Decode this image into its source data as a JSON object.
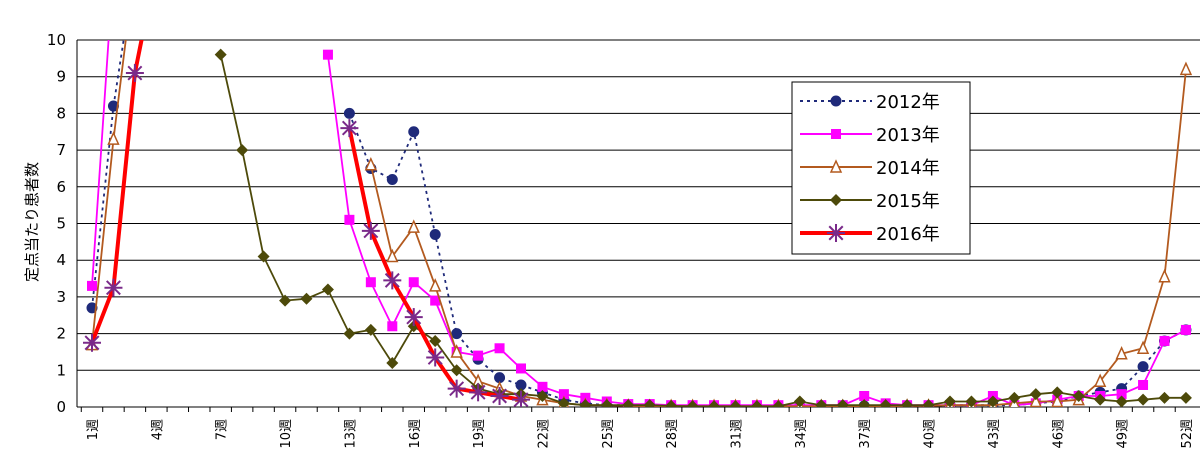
{
  "chart_data": {
    "type": "line",
    "ylabel": "定点当たり患者数",
    "ylim": [
      0,
      10
    ],
    "yticks": [
      "0",
      "1",
      "2",
      "3",
      "4",
      "5",
      "6",
      "7",
      "8",
      "9",
      "10"
    ],
    "xlim": [
      1,
      52
    ],
    "xtick_labels": [
      {
        "week": 1,
        "label": "1週"
      },
      {
        "week": 4,
        "label": "4週"
      },
      {
        "week": 7,
        "label": "7週"
      },
      {
        "week": 10,
        "label": "10週"
      },
      {
        "week": 13,
        "label": "13週"
      },
      {
        "week": 16,
        "label": "16週"
      },
      {
        "week": 19,
        "label": "19週"
      },
      {
        "week": 22,
        "label": "22週"
      },
      {
        "week": 25,
        "label": "25週"
      },
      {
        "week": 28,
        "label": "28週"
      },
      {
        "week": 31,
        "label": "31週"
      },
      {
        "week": 34,
        "label": "34週"
      },
      {
        "week": 37,
        "label": "37週"
      },
      {
        "week": 40,
        "label": "40週"
      },
      {
        "week": 43,
        "label": "43週"
      },
      {
        "week": 46,
        "label": "46週"
      },
      {
        "week": 49,
        "label": "49週"
      },
      {
        "week": 52,
        "label": "52週"
      }
    ],
    "grid": true,
    "legend_position": "top-right",
    "series": [
      {
        "name": "2012年",
        "color": "#1f2a7a",
        "marker": "circle",
        "dash": true,
        "x": [
          1,
          2,
          3,
          4,
          13,
          14,
          15,
          16,
          17,
          18,
          19,
          20,
          21,
          22,
          23,
          24,
          25,
          26,
          27,
          28,
          29,
          30,
          31,
          32,
          33,
          34,
          35,
          36,
          37,
          38,
          39,
          40,
          41,
          42,
          43,
          44,
          45,
          46,
          47,
          48,
          49,
          50,
          51,
          52
        ],
        "y": [
          2.7,
          8.2,
          12,
          12,
          8.0,
          6.5,
          6.2,
          7.5,
          4.7,
          2.0,
          1.3,
          0.8,
          0.6,
          0.4,
          0.2,
          0.1,
          0.05,
          0.05,
          0.05,
          0.03,
          0.02,
          0.02,
          0.02,
          0.02,
          0.02,
          0.02,
          0.02,
          0.02,
          0.03,
          0.03,
          0.03,
          0.03,
          0.05,
          0.05,
          0.05,
          0.05,
          0.1,
          0.15,
          0.3,
          0.4,
          0.5,
          1.1,
          1.8,
          2.1
        ]
      },
      {
        "name": "2013年",
        "color": "#ff00ff",
        "marker": "square",
        "dash": false,
        "x": [
          1,
          2,
          3,
          12,
          13,
          14,
          15,
          16,
          17,
          18,
          19,
          20,
          21,
          22,
          23,
          24,
          25,
          26,
          27,
          28,
          29,
          30,
          31,
          32,
          33,
          34,
          35,
          36,
          37,
          38,
          39,
          40,
          41,
          42,
          43,
          44,
          45,
          46,
          47,
          48,
          49,
          50,
          51,
          52
        ],
        "y": [
          3.3,
          12,
          12,
          9.6,
          5.1,
          3.4,
          2.2,
          3.4,
          2.9,
          1.5,
          1.4,
          1.6,
          1.05,
          0.55,
          0.35,
          0.25,
          0.15,
          0.08,
          0.08,
          0.05,
          0.05,
          0.05,
          0.05,
          0.05,
          0.05,
          0.05,
          0.05,
          0.05,
          0.3,
          0.1,
          0.05,
          0.05,
          0.05,
          0.05,
          0.3,
          0.05,
          0.1,
          0.2,
          0.3,
          0.3,
          0.35,
          0.6,
          1.8,
          2.1
        ]
      },
      {
        "name": "2014年",
        "color": "#b35a1f",
        "marker": "triangle",
        "dash": false,
        "x": [
          1,
          2,
          3,
          14,
          15,
          16,
          17,
          18,
          19,
          20,
          21,
          22,
          23,
          24,
          25,
          26,
          27,
          28,
          29,
          30,
          31,
          32,
          33,
          34,
          35,
          36,
          37,
          38,
          39,
          40,
          41,
          42,
          43,
          44,
          45,
          46,
          47,
          48,
          49,
          50,
          51,
          52
        ],
        "y": [
          1.7,
          7.3,
          12,
          6.6,
          4.1,
          4.9,
          3.3,
          1.5,
          0.7,
          0.5,
          0.3,
          0.2,
          0.1,
          0.05,
          0.05,
          0.03,
          0.02,
          0.02,
          0.02,
          0.02,
          0.02,
          0.02,
          0.02,
          0.02,
          0.02,
          0.02,
          0.02,
          0.02,
          0.03,
          0.03,
          0.05,
          0.05,
          0.05,
          0.1,
          0.15,
          0.15,
          0.2,
          0.7,
          1.45,
          1.6,
          3.55,
          9.2
        ]
      },
      {
        "name": "2015年",
        "color": "#4d4a0a",
        "marker": "diamond",
        "dash": false,
        "x": [
          7,
          8,
          9,
          10,
          11,
          12,
          13,
          14,
          15,
          16,
          17,
          18,
          19,
          20,
          21,
          22,
          23,
          24,
          25,
          26,
          27,
          28,
          29,
          30,
          31,
          32,
          33,
          34,
          35,
          36,
          37,
          38,
          39,
          40,
          41,
          42,
          43,
          44,
          45,
          46,
          47,
          48,
          49,
          50,
          51,
          52
        ],
        "y": [
          9.6,
          7.0,
          4.1,
          2.9,
          2.95,
          3.2,
          2.0,
          2.1,
          1.2,
          2.2,
          1.8,
          1.0,
          0.5,
          0.35,
          0.35,
          0.3,
          0.1,
          0.05,
          0.05,
          0.05,
          0.05,
          0.03,
          0.02,
          0.02,
          0.02,
          0.02,
          0.02,
          0.15,
          0.05,
          0.05,
          0.05,
          0.05,
          0.05,
          0.05,
          0.15,
          0.15,
          0.15,
          0.25,
          0.35,
          0.4,
          0.3,
          0.2,
          0.15,
          0.2,
          0.25,
          0.25
        ]
      },
      {
        "name": "2016年",
        "color": "#ff0000",
        "marker": "asterisk",
        "marker_color": "#7a2a8a",
        "dash": false,
        "x": [
          1,
          2,
          3,
          4,
          13,
          14,
          15,
          16,
          17,
          18,
          19,
          20,
          21
        ],
        "y": [
          1.75,
          3.25,
          9.1,
          12,
          7.6,
          4.8,
          3.45,
          2.45,
          1.35,
          0.5,
          0.4,
          0.3,
          0.2
        ]
      }
    ]
  }
}
